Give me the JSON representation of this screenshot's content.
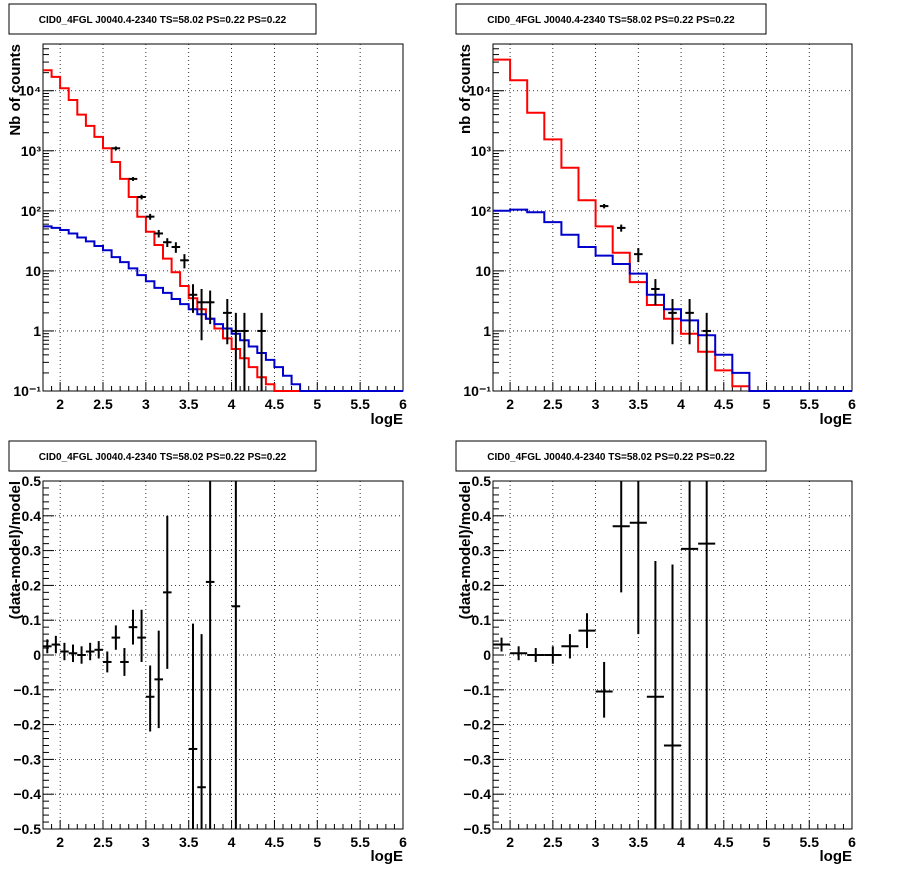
{
  "colors": {
    "data": "#000000",
    "total_model": "#ff0000",
    "component_model": "#0000cc",
    "grid": "#000000"
  },
  "chart_data": [
    {
      "type": "line",
      "title": "CID0_4FGL J0040.4-2340 TS=58.02 PS=0.22 PS=0.22",
      "xlabel": "logE",
      "ylabel": "Nb of counts",
      "xlim": [
        1.8,
        6
      ],
      "ylim": [
        0.1,
        60000
      ],
      "log_y": true,
      "grid": true,
      "x_ticks": [
        2,
        2.5,
        3,
        3.5,
        4,
        4.5,
        5,
        5.5,
        6
      ],
      "x_tick_labels": [
        "2",
        "2.5",
        "3",
        "3.5",
        "4",
        "4.5",
        "5",
        "5.5",
        "6"
      ],
      "y_ticks": [
        0.1,
        1,
        10,
        100,
        1000,
        10000
      ],
      "y_tick_labels": [
        "10⁻¹",
        "1",
        "10",
        "10²",
        "10³",
        "10⁴"
      ],
      "bin_edges": [
        1.8,
        1.9,
        2.0,
        2.1,
        2.2,
        2.3,
        2.4,
        2.5,
        2.6,
        2.7,
        2.8,
        2.9,
        3.0,
        3.1,
        3.2,
        3.3,
        3.4,
        3.5,
        3.6,
        3.7,
        3.8,
        3.9,
        4.0,
        4.1,
        4.2,
        4.3,
        4.4,
        4.5,
        4.6,
        4.7,
        4.8,
        4.9,
        5.0,
        5.1,
        5.2,
        5.3,
        5.4,
        5.5,
        5.6,
        5.7,
        5.8,
        5.9,
        6.0
      ],
      "series": [
        {
          "values": [
            22000,
            17000,
            11000,
            7000,
            4000,
            2600,
            1700,
            1100,
            650,
            340,
            170,
            80,
            45,
            27,
            16,
            9.5,
            5.6,
            3.5,
            2.3,
            1.6,
            1.1,
            0.75,
            0.5,
            0.35,
            0.25,
            0.17,
            0.13,
            0.1,
            0.1,
            0.1,
            0.1,
            0.1,
            0.1,
            0.1,
            0.1,
            0.1,
            0.1,
            0.1,
            0.1,
            0.1,
            0.1,
            0.1
          ],
          "style": "step",
          "color": "#ff0000"
        },
        {
          "values": [
            55,
            52,
            48,
            42,
            36,
            31,
            26,
            22,
            17,
            14,
            11,
            8.5,
            6.7,
            5.2,
            4.3,
            3.4,
            2.8,
            2.3,
            1.9,
            1.6,
            1.3,
            1.1,
            0.9,
            0.7,
            0.55,
            0.43,
            0.33,
            0.25,
            0.18,
            0.13,
            0.1,
            0.1,
            0.1,
            0.1,
            0.1,
            0.1,
            0.1,
            0.1,
            0.1,
            0.1,
            0.1,
            0.1
          ],
          "style": "step",
          "color": "#0000cc"
        },
        {
          "style": "errorbars",
          "color": "#000000",
          "points": [
            {
              "x": 2.65,
              "y": 1100,
              "ylo": 1020,
              "yhi": 1180
            },
            {
              "x": 2.85,
              "y": 340,
              "ylo": 315,
              "yhi": 365
            },
            {
              "x": 2.95,
              "y": 170,
              "ylo": 155,
              "yhi": 185
            },
            {
              "x": 3.05,
              "y": 80,
              "ylo": 71,
              "yhi": 89
            },
            {
              "x": 3.15,
              "y": 42,
              "ylo": 36,
              "yhi": 48
            },
            {
              "x": 3.25,
              "y": 30,
              "ylo": 25,
              "yhi": 35
            },
            {
              "x": 3.35,
              "y": 25,
              "ylo": 20,
              "yhi": 30
            },
            {
              "x": 3.45,
              "y": 15,
              "ylo": 11,
              "yhi": 19
            },
            {
              "x": 3.55,
              "y": 4,
              "ylo": 2,
              "yhi": 6
            },
            {
              "x": 3.65,
              "y": 3,
              "ylo": 0.7,
              "yhi": 5
            },
            {
              "x": 3.75,
              "y": 3,
              "ylo": 1.3,
              "yhi": 4.7
            },
            {
              "x": 3.95,
              "y": 2,
              "ylo": 0.6,
              "yhi": 3.4
            },
            {
              "x": 4.05,
              "y": 1,
              "ylo": 0.1,
              "yhi": 2
            },
            {
              "x": 4.15,
              "y": 1,
              "ylo": 0.1,
              "yhi": 2
            },
            {
              "x": 4.35,
              "y": 1,
              "ylo": 0.1,
              "yhi": 2
            }
          ]
        }
      ]
    },
    {
      "type": "line",
      "title": "CID0_4FGL J0040.4-2340 TS=58.02 PS=0.22 PS=0.22",
      "xlabel": "logE",
      "ylabel": "nb of counts",
      "xlim": [
        1.8,
        6
      ],
      "ylim": [
        0.1,
        60000
      ],
      "log_y": true,
      "grid": true,
      "x_ticks": [
        2,
        2.5,
        3,
        3.5,
        4,
        4.5,
        5,
        5.5,
        6
      ],
      "x_tick_labels": [
        "2",
        "2.5",
        "3",
        "3.5",
        "4",
        "4.5",
        "5",
        "5.5",
        "6"
      ],
      "y_ticks": [
        0.1,
        1,
        10,
        100,
        1000,
        10000
      ],
      "y_tick_labels": [
        "10⁻¹",
        "1",
        "10",
        "10²",
        "10³",
        "10⁴"
      ],
      "bin_edges": [
        1.8,
        2.0,
        2.2,
        2.4,
        2.6,
        2.8,
        3.0,
        3.2,
        3.4,
        3.6,
        3.8,
        4.0,
        4.2,
        4.4,
        4.6,
        4.8,
        5.0,
        5.2,
        5.4,
        5.6,
        5.8,
        6.0
      ],
      "series": [
        {
          "values": [
            33000,
            15000,
            4300,
            1550,
            520,
            150,
            55,
            20,
            6.5,
            2.7,
            1.6,
            0.9,
            0.45,
            0.22,
            0.12,
            0.1,
            0.1,
            0.1,
            0.1,
            0.1,
            0.1
          ],
          "style": "step",
          "color": "#ff0000"
        },
        {
          "values": [
            100,
            105,
            95,
            65,
            40,
            25,
            18,
            13,
            9,
            4,
            2.3,
            1.5,
            0.85,
            0.4,
            0.2,
            0.1,
            0.1,
            0.1,
            0.1,
            0.1,
            0.1
          ],
          "style": "step",
          "color": "#0000cc"
        },
        {
          "style": "errorbars",
          "color": "#000000",
          "points": [
            {
              "x": 3.1,
              "y": 120,
              "ylo": 110,
              "yhi": 130
            },
            {
              "x": 3.3,
              "y": 52,
              "ylo": 45,
              "yhi": 59
            },
            {
              "x": 3.5,
              "y": 19,
              "ylo": 14,
              "yhi": 24
            },
            {
              "x": 3.7,
              "y": 5,
              "ylo": 2.7,
              "yhi": 7.3
            },
            {
              "x": 3.9,
              "y": 2,
              "ylo": 0.6,
              "yhi": 3.4
            },
            {
              "x": 4.1,
              "y": 2,
              "ylo": 0.6,
              "yhi": 3.4
            },
            {
              "x": 4.3,
              "y": 1,
              "ylo": 0.1,
              "yhi": 2
            }
          ]
        }
      ]
    },
    {
      "type": "scatter",
      "title": "CID0_4FGL J0040.4-2340 TS=58.02 PS=0.22 PS=0.22",
      "xlabel": "logE",
      "ylabel": "(data-model)/model",
      "xlim": [
        1.8,
        6
      ],
      "ylim": [
        -0.5,
        0.5
      ],
      "log_y": false,
      "grid": true,
      "x_ticks": [
        2,
        2.5,
        3,
        3.5,
        4,
        4.5,
        5,
        5.5,
        6
      ],
      "x_tick_labels": [
        "2",
        "2.5",
        "3",
        "3.5",
        "4",
        "4.5",
        "5",
        "5.5",
        "6"
      ],
      "y_ticks": [
        -0.5,
        -0.4,
        -0.3,
        -0.2,
        -0.1,
        0,
        0.1,
        0.2,
        0.3,
        0.4,
        0.5
      ],
      "y_tick_labels": [
        "−0.5",
        "−0.4",
        "−0.3",
        "−0.2",
        "−0.1",
        "0",
        "0.1",
        "0.2",
        "0.3",
        "0.4",
        "0.5"
      ],
      "series": [
        {
          "style": "errorbars",
          "color": "#000000",
          "xerr": 0.05,
          "points": [
            {
              "x": 1.85,
              "y": 0.025,
              "ylo": 0.005,
              "yhi": 0.045
            },
            {
              "x": 1.95,
              "y": 0.03,
              "ylo": 0.005,
              "yhi": 0.055
            },
            {
              "x": 2.05,
              "y": 0.01,
              "ylo": -0.015,
              "yhi": 0.035
            },
            {
              "x": 2.15,
              "y": 0.005,
              "ylo": -0.02,
              "yhi": 0.03
            },
            {
              "x": 2.25,
              "y": 0.0,
              "ylo": -0.025,
              "yhi": 0.025
            },
            {
              "x": 2.35,
              "y": 0.01,
              "ylo": -0.015,
              "yhi": 0.035
            },
            {
              "x": 2.45,
              "y": 0.015,
              "ylo": -0.01,
              "yhi": 0.04
            },
            {
              "x": 2.55,
              "y": -0.02,
              "ylo": -0.05,
              "yhi": 0.01
            },
            {
              "x": 2.65,
              "y": 0.05,
              "ylo": 0.015,
              "yhi": 0.085
            },
            {
              "x": 2.75,
              "y": -0.02,
              "ylo": -0.06,
              "yhi": 0.02
            },
            {
              "x": 2.85,
              "y": 0.08,
              "ylo": 0.03,
              "yhi": 0.13
            },
            {
              "x": 2.95,
              "y": 0.05,
              "ylo": -0.02,
              "yhi": 0.13
            },
            {
              "x": 3.05,
              "y": -0.12,
              "ylo": -0.22,
              "yhi": -0.03
            },
            {
              "x": 3.15,
              "y": -0.07,
              "ylo": -0.21,
              "yhi": 0.07
            },
            {
              "x": 3.25,
              "y": 0.18,
              "ylo": -0.04,
              "yhi": 0.4
            },
            {
              "x": 3.55,
              "y": -0.27,
              "ylo": -0.5,
              "yhi": 0.09
            },
            {
              "x": 3.65,
              "y": -0.38,
              "ylo": -0.5,
              "yhi": 0.06
            },
            {
              "x": 3.75,
              "y": 0.21,
              "ylo": -0.5,
              "yhi": 0.5
            },
            {
              "x": 4.05,
              "y": 0.14,
              "ylo": -0.5,
              "yhi": 0.5
            }
          ]
        }
      ]
    },
    {
      "type": "scatter",
      "title": "CID0_4FGL J0040.4-2340 TS=58.02 PS=0.22 PS=0.22",
      "xlabel": "logE",
      "ylabel": "(data-model)/model",
      "xlim": [
        1.8,
        6
      ],
      "ylim": [
        -0.5,
        0.5
      ],
      "log_y": false,
      "grid": true,
      "x_ticks": [
        2,
        2.5,
        3,
        3.5,
        4,
        4.5,
        5,
        5.5,
        6
      ],
      "x_tick_labels": [
        "2",
        "2.5",
        "3",
        "3.5",
        "4",
        "4.5",
        "5",
        "5.5",
        "6"
      ],
      "y_ticks": [
        -0.5,
        -0.4,
        -0.3,
        -0.2,
        -0.1,
        0,
        0.1,
        0.2,
        0.3,
        0.4,
        0.5
      ],
      "y_tick_labels": [
        "−0.5",
        "−0.4",
        "−0.3",
        "−0.2",
        "−0.1",
        "0",
        "0.1",
        "0.2",
        "0.3",
        "0.4",
        "0.5"
      ],
      "series": [
        {
          "style": "errorbars",
          "color": "#000000",
          "xerr": 0.1,
          "points": [
            {
              "x": 1.9,
              "y": 0.03,
              "ylo": 0.01,
              "yhi": 0.05
            },
            {
              "x": 2.1,
              "y": 0.005,
              "ylo": -0.015,
              "yhi": 0.025
            },
            {
              "x": 2.3,
              "y": 0.0,
              "ylo": -0.02,
              "yhi": 0.02
            },
            {
              "x": 2.5,
              "y": 0.0,
              "ylo": -0.025,
              "yhi": 0.025
            },
            {
              "x": 2.7,
              "y": 0.025,
              "ylo": -0.01,
              "yhi": 0.06
            },
            {
              "x": 2.9,
              "y": 0.07,
              "ylo": 0.02,
              "yhi": 0.12
            },
            {
              "x": 3.1,
              "y": -0.105,
              "ylo": -0.18,
              "yhi": -0.02
            },
            {
              "x": 3.3,
              "y": 0.37,
              "ylo": 0.18,
              "yhi": 0.5
            },
            {
              "x": 3.5,
              "y": 0.38,
              "ylo": 0.06,
              "yhi": 0.5
            },
            {
              "x": 3.7,
              "y": -0.12,
              "ylo": -0.5,
              "yhi": 0.27
            },
            {
              "x": 3.9,
              "y": -0.26,
              "ylo": -0.5,
              "yhi": 0.26
            },
            {
              "x": 4.1,
              "y": 0.305,
              "ylo": -0.5,
              "yhi": 0.5
            },
            {
              "x": 4.3,
              "y": 0.32,
              "ylo": -0.5,
              "yhi": 0.5
            }
          ]
        }
      ]
    }
  ]
}
